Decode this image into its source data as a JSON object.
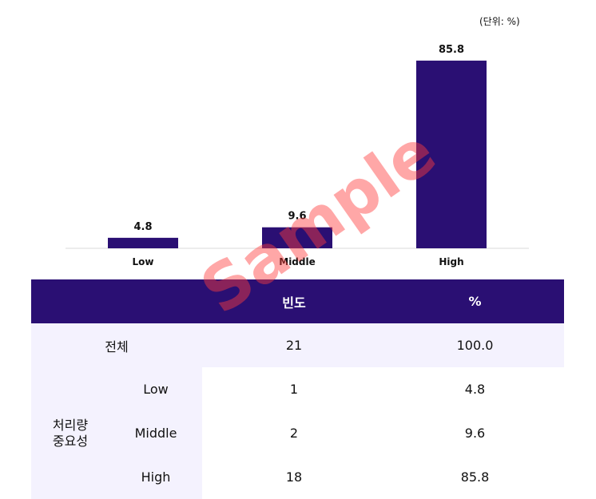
{
  "unit_label": "(단위: %)",
  "chart_data": {
    "type": "bar",
    "categories": [
      "Low",
      "Middle",
      "High"
    ],
    "values": [
      4.8,
      9.6,
      85.8
    ],
    "value_labels": [
      "4.8",
      "9.6",
      "85.8"
    ],
    "ylim": [
      0,
      100
    ],
    "bar_color": "#2a0f73",
    "grid": false,
    "legend": "none"
  },
  "table": {
    "headers": [
      "",
      "빈도",
      "%"
    ],
    "total": {
      "label": "전체",
      "freq": "21",
      "pct": "100.0"
    },
    "group_label_line1": "처리량",
    "group_label_line2": "중요성",
    "rows": [
      {
        "label": "Low",
        "freq": "1",
        "pct": "4.8"
      },
      {
        "label": "Middle",
        "freq": "2",
        "pct": "9.6"
      },
      {
        "label": "High",
        "freq": "18",
        "pct": "85.8"
      }
    ],
    "header_color": "#2a0f73",
    "row_color": "#f4f2fe"
  },
  "watermark": "Sample"
}
